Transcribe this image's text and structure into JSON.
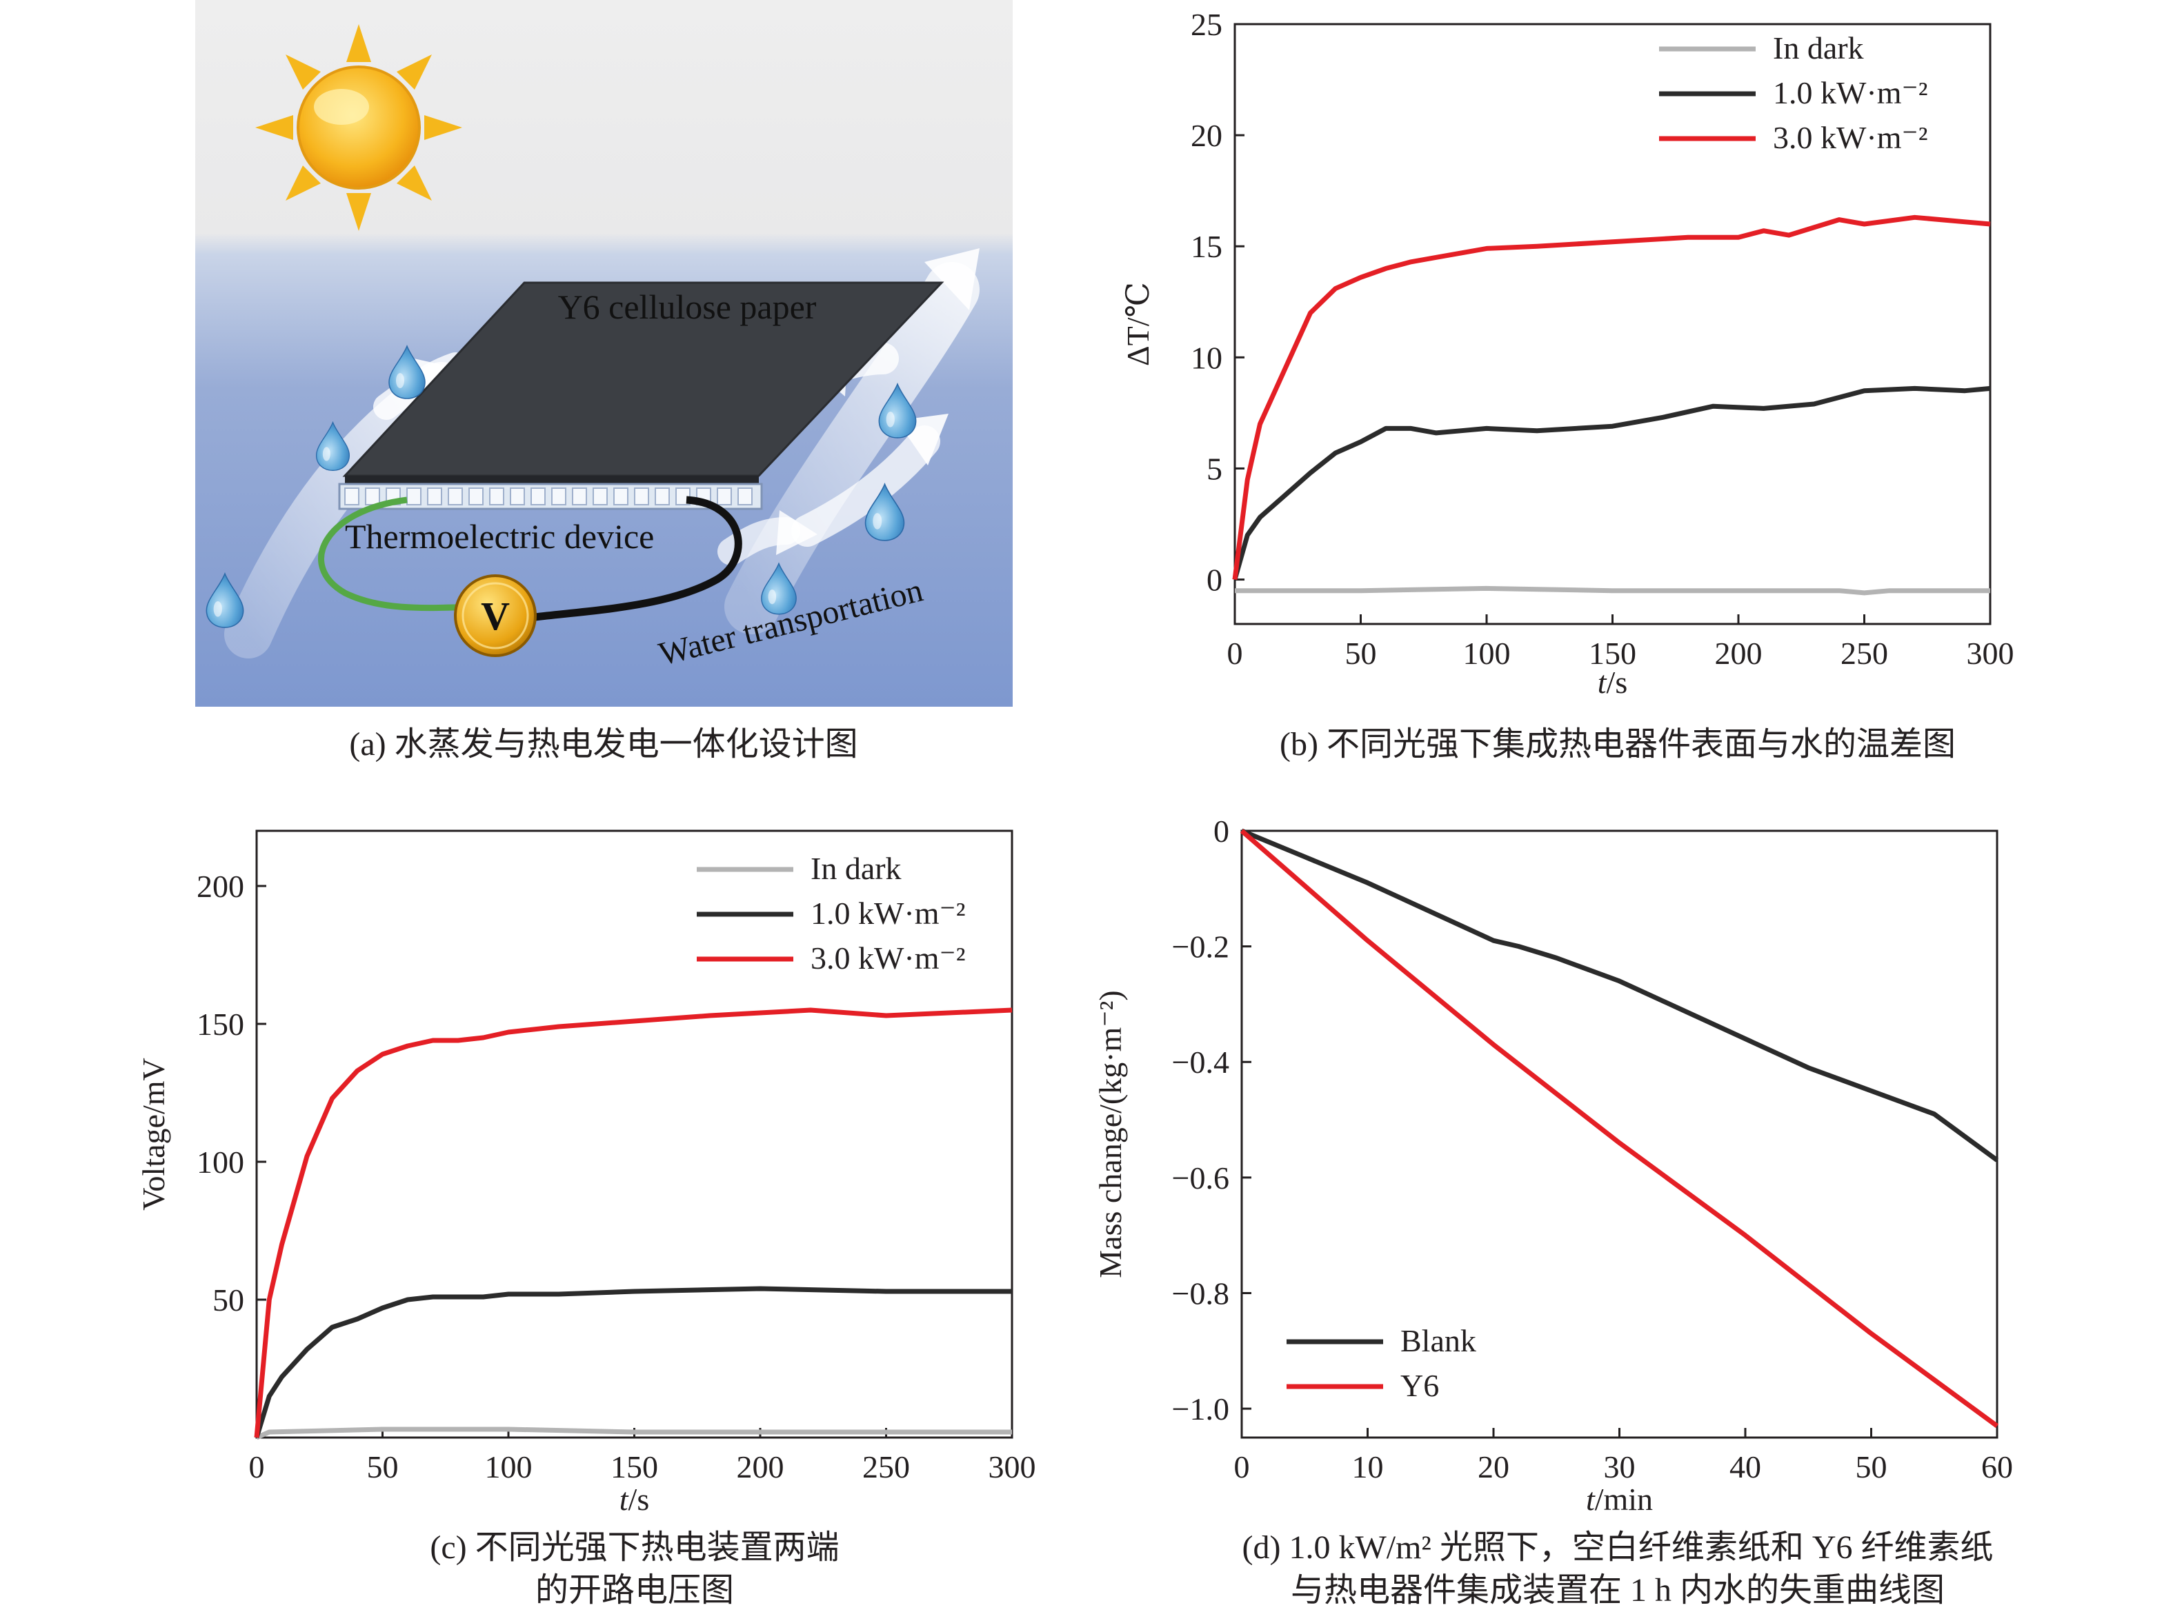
{
  "panel_a": {
    "caption": "(a) 水蒸发与热电发电一体化设计图",
    "labels": {
      "paper": "Y6 cellulose paper",
      "device": "Thermoelectric device",
      "water": "Water transportation",
      "meter": "V"
    },
    "icons": [
      "sun-icon",
      "water-drop-icon",
      "voltmeter-icon"
    ]
  },
  "chart_data": [
    {
      "id": "b",
      "type": "line",
      "caption": "(b) 不同光强下集成热电器件表面与水的温差图",
      "xlabel": "t/s",
      "ylabel": "ΔT/℃",
      "xlim": [
        0,
        300
      ],
      "ylim": [
        -2,
        25
      ],
      "xticks": [
        "0",
        "50",
        "100",
        "150",
        "200",
        "250",
        "300"
      ],
      "yticks": [
        "0",
        "5",
        "10",
        "15",
        "20",
        "25"
      ],
      "legend_position": "top-right",
      "series": [
        {
          "name": "In dark",
          "color": "#b3b3b3",
          "x": [
            0,
            50,
            100,
            150,
            200,
            240,
            250,
            260,
            300
          ],
          "y": [
            -0.5,
            -0.5,
            -0.4,
            -0.5,
            -0.5,
            -0.5,
            -0.6,
            -0.5,
            -0.5
          ]
        },
        {
          "name": "1.0 kW·m⁻²",
          "color": "#2b2b2b",
          "x": [
            0,
            5,
            10,
            20,
            30,
            40,
            50,
            60,
            70,
            80,
            90,
            100,
            120,
            150,
            170,
            190,
            210,
            230,
            250,
            270,
            290,
            300
          ],
          "y": [
            0,
            2.0,
            2.8,
            3.8,
            4.8,
            5.7,
            6.2,
            6.8,
            6.8,
            6.6,
            6.7,
            6.8,
            6.7,
            6.9,
            7.3,
            7.8,
            7.7,
            7.9,
            8.5,
            8.6,
            8.5,
            8.6
          ]
        },
        {
          "name": "3.0 kW·m⁻²",
          "color": "#e41f25",
          "x": [
            0,
            5,
            10,
            20,
            30,
            40,
            50,
            60,
            70,
            80,
            100,
            120,
            150,
            180,
            200,
            210,
            220,
            240,
            250,
            270,
            290,
            300
          ],
          "y": [
            0,
            4.5,
            7.0,
            9.5,
            12.0,
            13.1,
            13.6,
            14.0,
            14.3,
            14.5,
            14.9,
            15.0,
            15.2,
            15.4,
            15.4,
            15.7,
            15.5,
            16.2,
            16.0,
            16.3,
            16.1,
            16.0
          ]
        }
      ]
    },
    {
      "id": "c",
      "type": "line",
      "caption_lines": [
        "(c) 不同光强下热电装置两端",
        "的开路电压图"
      ],
      "xlabel": "t/s",
      "ylabel": "Voltage/mV",
      "xlim": [
        0,
        300
      ],
      "ylim": [
        0,
        220
      ],
      "xticks": [
        "0",
        "50",
        "100",
        "150",
        "200",
        "250",
        "300"
      ],
      "yticks": [
        "50",
        "100",
        "150",
        "200"
      ],
      "legend_position": "top-right",
      "series": [
        {
          "name": "In dark",
          "color": "#b3b3b3",
          "x": [
            0,
            5,
            50,
            100,
            150,
            200,
            250,
            300
          ],
          "y": [
            0,
            2,
            3,
            3,
            2,
            2,
            2,
            2
          ]
        },
        {
          "name": "1.0 kW·m⁻²",
          "color": "#2b2b2b",
          "x": [
            0,
            5,
            10,
            20,
            30,
            40,
            50,
            60,
            70,
            90,
            100,
            120,
            150,
            200,
            250,
            300
          ],
          "y": [
            0,
            15,
            22,
            32,
            40,
            43,
            47,
            50,
            51,
            51,
            52,
            52,
            53,
            54,
            53,
            53
          ]
        },
        {
          "name": "3.0 kW·m⁻²",
          "color": "#e41f25",
          "x": [
            0,
            5,
            10,
            20,
            30,
            40,
            50,
            60,
            70,
            80,
            90,
            100,
            120,
            150,
            180,
            200,
            220,
            250,
            300
          ],
          "y": [
            0,
            50,
            70,
            102,
            123,
            133,
            139,
            142,
            144,
            144,
            145,
            147,
            149,
            151,
            153,
            154,
            155,
            153,
            155
          ]
        }
      ]
    },
    {
      "id": "d",
      "type": "line",
      "caption_lines": [
        "(d) 1.0 kW/m² 光照下，空白纤维素纸和 Y6 纤维素纸",
        "与热电器件集成装置在 1 h 内水的失重曲线图"
      ],
      "xlabel": "t/min",
      "ylabel": "Mass change/(kg·m⁻²)",
      "xlim": [
        0,
        60
      ],
      "ylim": [
        -1.05,
        0
      ],
      "xticks": [
        "0",
        "10",
        "20",
        "30",
        "40",
        "50",
        "60"
      ],
      "yticks": [
        "0",
        "−0.2",
        "−0.4",
        "−0.6",
        "−0.8",
        "−1.0"
      ],
      "legend_position": "bottom-left",
      "series": [
        {
          "name": "Blank",
          "color": "#2b2b2b",
          "x": [
            0,
            5,
            10,
            15,
            20,
            22,
            25,
            30,
            35,
            40,
            45,
            50,
            55,
            60
          ],
          "y": [
            0,
            -0.045,
            -0.09,
            -0.14,
            -0.19,
            -0.2,
            -0.22,
            -0.26,
            -0.31,
            -0.36,
            -0.41,
            -0.45,
            -0.49,
            -0.57
          ]
        },
        {
          "name": "Y6",
          "color": "#e41f25",
          "x": [
            0,
            10,
            20,
            30,
            40,
            50,
            60
          ],
          "y": [
            0,
            -0.19,
            -0.37,
            -0.54,
            -0.7,
            -0.87,
            -1.03
          ]
        }
      ]
    }
  ]
}
